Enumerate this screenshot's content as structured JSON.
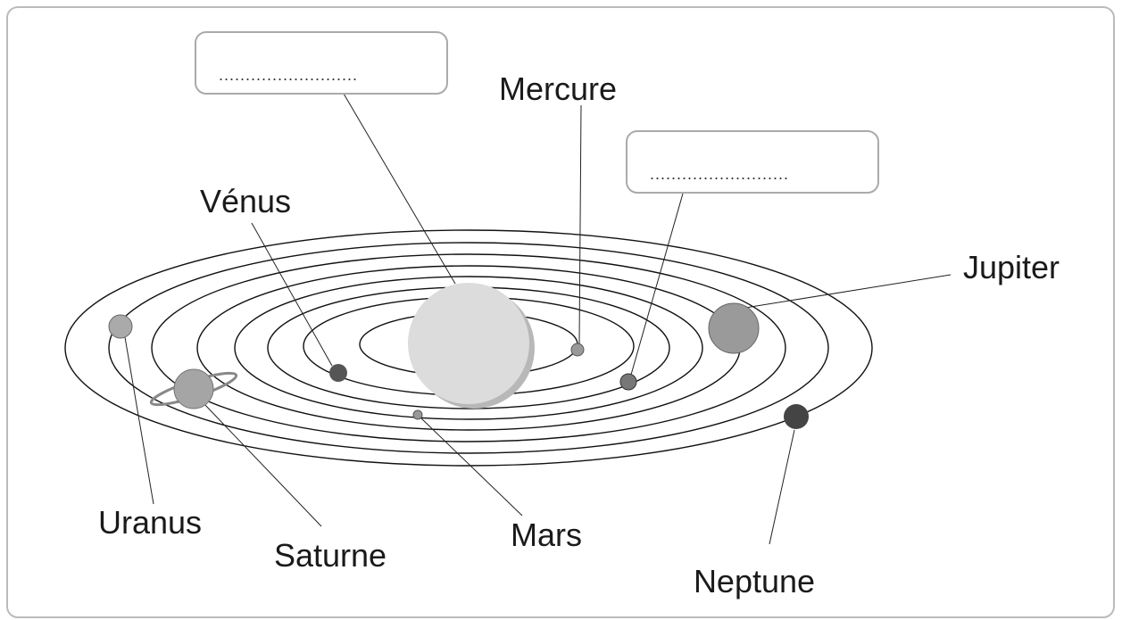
{
  "labels": {
    "venus": "Vénus",
    "mercure": "Mercure",
    "jupiter": "Jupiter",
    "uranus": "Uranus",
    "saturne": "Saturne",
    "mars": "Mars",
    "neptune": "Neptune"
  },
  "blanks": [
    "..........................",
    ".........................."
  ]
}
